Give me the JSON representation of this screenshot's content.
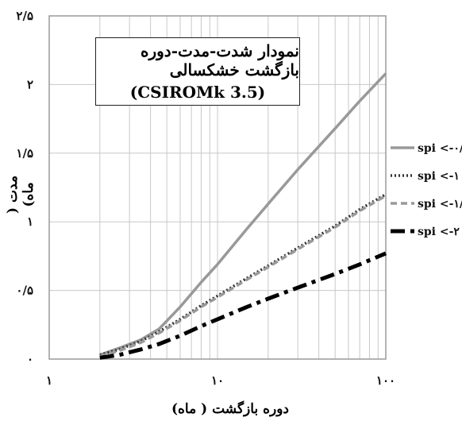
{
  "chart_data": {
    "type": "line",
    "title_line1": "نمودار شدت-مدت-دوره بازگشت خشکسالی",
    "title_line2": "(CSIROMk 3.5)",
    "xlabel": "دوره بازگشت ( ماه)",
    "ylabel": "مدت ( ماه)",
    "x_scale": "log",
    "xlim": [
      1,
      100
    ],
    "ylim": [
      0,
      2.5
    ],
    "x_ticks": [
      {
        "value": 1,
        "label": "1"
      },
      {
        "value": 10,
        "label": "10"
      },
      {
        "value": 100,
        "label": "100"
      }
    ],
    "y_ticks": [
      {
        "value": 0,
        "label": "0"
      },
      {
        "value": 0.5,
        "label": "0/5"
      },
      {
        "value": 1,
        "label": "1"
      },
      {
        "value": 1.5,
        "label": "1/5"
      },
      {
        "value": 2,
        "label": "2"
      },
      {
        "value": 2.5,
        "label": "2/5"
      }
    ],
    "grid": true,
    "legend_position": "right",
    "series": [
      {
        "name": "spi <-0/5",
        "color": "#999999",
        "dash": "solid",
        "width": 3.5,
        "x": [
          2,
          2.6,
          3.5,
          4.5,
          6,
          8,
          10,
          15,
          20,
          30,
          50,
          70,
          100
        ],
        "y": [
          0.03,
          0.08,
          0.14,
          0.22,
          0.38,
          0.56,
          0.69,
          0.95,
          1.13,
          1.38,
          1.68,
          1.88,
          2.08
        ]
      },
      {
        "name": "spi <-1",
        "color": "#333333",
        "dash": "dotted",
        "width": 3.5,
        "x": [
          2,
          2.6,
          3.5,
          4.5,
          6,
          8,
          10,
          15,
          20,
          30,
          50,
          70,
          100
        ],
        "y": [
          0.03,
          0.07,
          0.13,
          0.2,
          0.29,
          0.39,
          0.46,
          0.59,
          0.68,
          0.81,
          0.97,
          1.09,
          1.2
        ]
      },
      {
        "name": "spi <-1/5",
        "color": "#999999",
        "dash": "dashed",
        "width": 3.5,
        "x": [
          2,
          2.6,
          3.5,
          4.5,
          6,
          8,
          10,
          15,
          20,
          30,
          50,
          70,
          100
        ],
        "y": [
          0.02,
          0.06,
          0.12,
          0.19,
          0.28,
          0.38,
          0.45,
          0.58,
          0.67,
          0.8,
          0.96,
          1.08,
          1.19
        ]
      },
      {
        "name": "spi <-2",
        "color": "#000000",
        "dash": "dashdot",
        "width": 5,
        "x": [
          2,
          2.6,
          3.5,
          4.5,
          6,
          8,
          10,
          15,
          20,
          30,
          50,
          70,
          100
        ],
        "y": [
          0.01,
          0.03,
          0.07,
          0.11,
          0.17,
          0.24,
          0.29,
          0.38,
          0.44,
          0.52,
          0.62,
          0.69,
          0.77
        ]
      }
    ]
  }
}
